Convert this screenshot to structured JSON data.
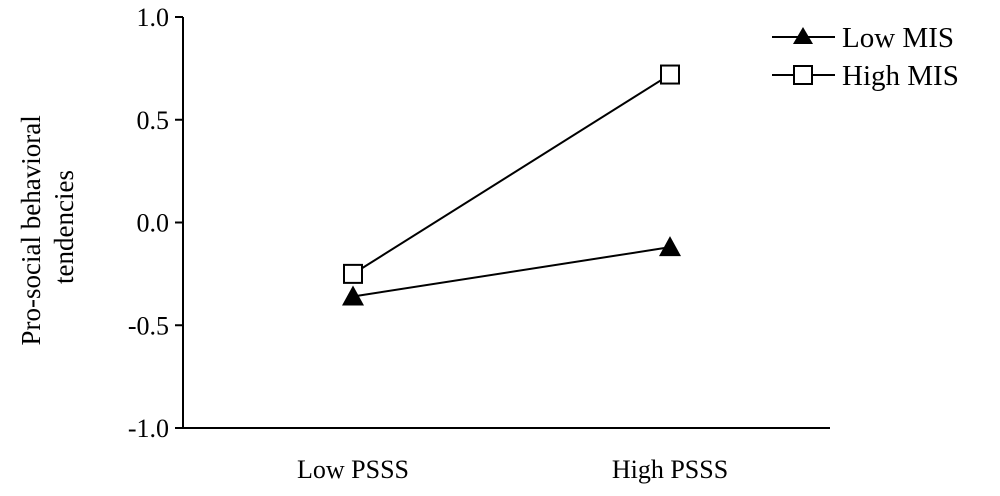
{
  "chart_data": {
    "type": "line",
    "categories": [
      "Low PSSS",
      "High PSSS"
    ],
    "series": [
      {
        "name": "Low MIS",
        "marker": "filled-triangle",
        "values": [
          -0.36,
          -0.12
        ]
      },
      {
        "name": "High MIS",
        "marker": "open-square",
        "values": [
          -0.25,
          0.72
        ]
      }
    ],
    "ylabel_lines": [
      "Pro-social behavioral",
      "tendencies"
    ],
    "ylim": [
      -1.0,
      1.0
    ],
    "yticks": [
      1.0,
      0.5,
      0.0,
      -0.5,
      -1.0
    ],
    "ytick_labels": [
      "1.0",
      "0.5",
      "0.0",
      "-0.5",
      "-1.0"
    ],
    "grid": false,
    "legend_position": "top-right",
    "colors": {
      "line": "#000000",
      "background": "#ffffff"
    }
  }
}
